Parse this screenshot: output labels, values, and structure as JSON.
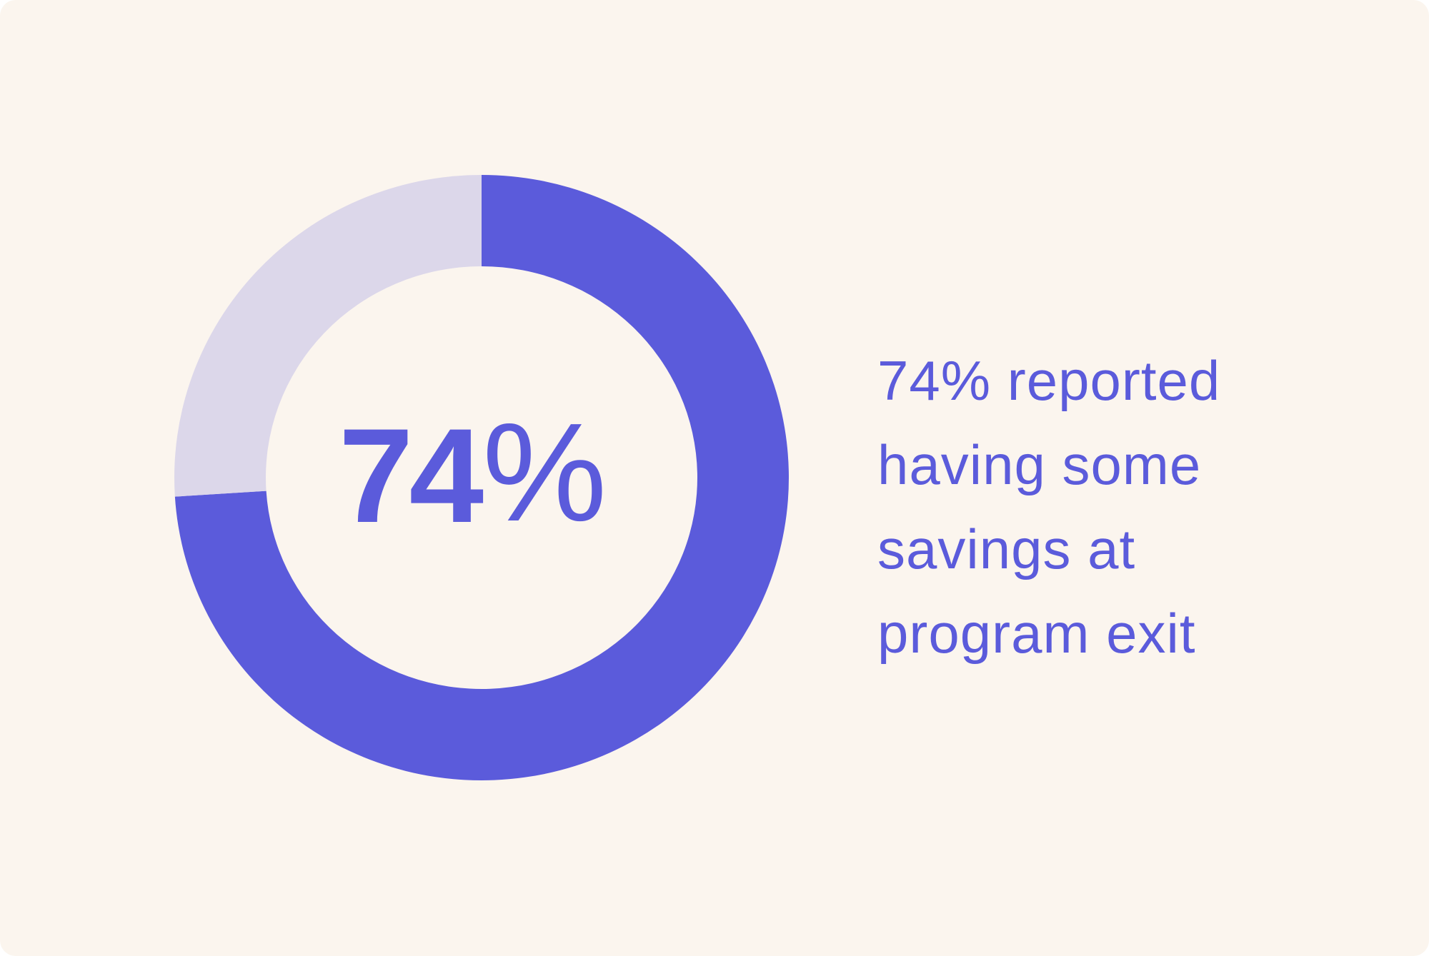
{
  "chart_data": {
    "type": "pie",
    "style": "donut",
    "slices": [
      {
        "label": "",
        "value": 74,
        "color": "#5b5bdb"
      },
      {
        "label": "",
        "value": 26,
        "color": "#dcd7ea"
      }
    ],
    "center_label": {
      "number": "74",
      "unit": "%"
    },
    "caption": [
      "74% reported",
      "having some",
      "savings at",
      "program exit"
    ]
  },
  "colors": {
    "background": "#fbf5ee",
    "accent": "#5b5bdb",
    "remainder": "#dcd7ea",
    "text": "#5b5bdb"
  }
}
